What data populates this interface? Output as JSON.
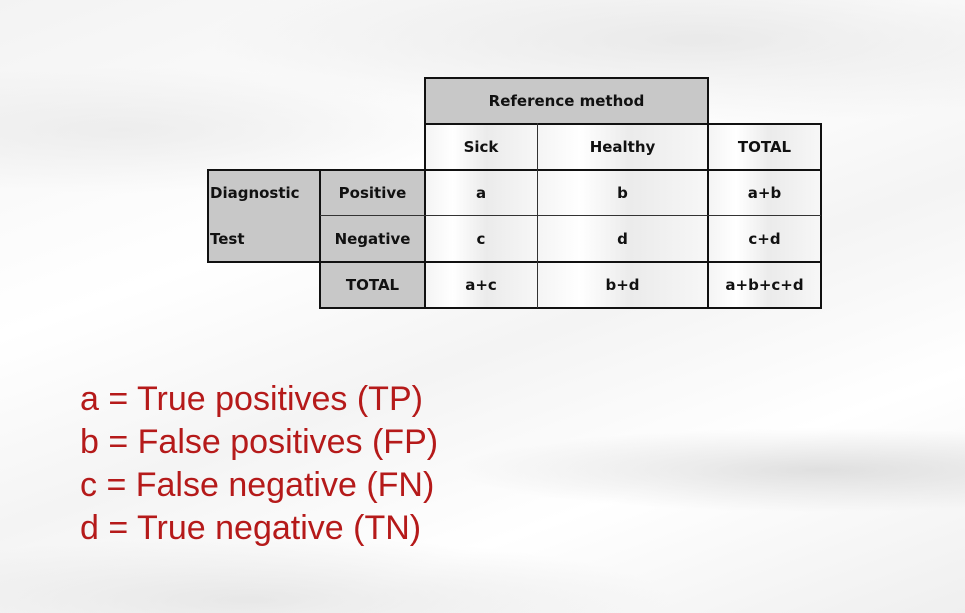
{
  "table": {
    "reference_header": "Reference method",
    "columns": [
      "Sick",
      "Healthy",
      "TOTAL"
    ],
    "row_group_label_line1": "Diagnostic",
    "row_group_label_line2": "Test",
    "rows": [
      {
        "label": "Positive",
        "cells": [
          "a",
          "b",
          "a+b"
        ]
      },
      {
        "label": "Negative",
        "cells": [
          "c",
          "d",
          "c+d"
        ]
      },
      {
        "label": "TOTAL",
        "cells": [
          "a+c",
          "b+d",
          "a+b+c+d"
        ]
      }
    ]
  },
  "legend": [
    "a = True positives (TP)",
    "b = False positives (FP)",
    "c = False negative (FN)",
    "d = True negative (TN)"
  ],
  "colors": {
    "header_fill": "#c8c8c8",
    "legend_text": "#b51a1a"
  }
}
